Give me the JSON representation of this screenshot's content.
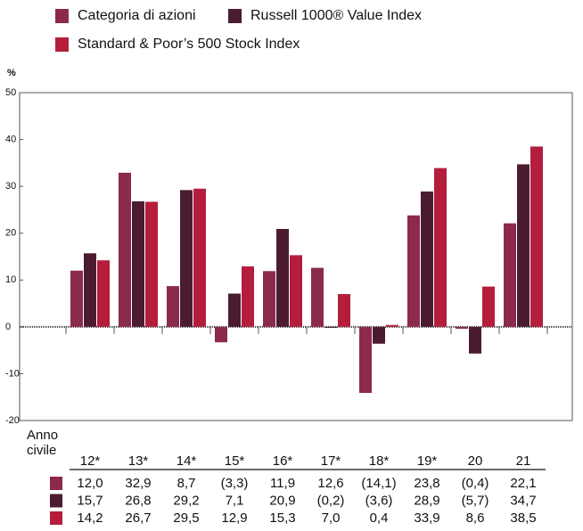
{
  "chart_data": {
    "type": "bar",
    "y_label": "%",
    "x_label": "Anno civile",
    "categories": [
      "12*",
      "13*",
      "14*",
      "15*",
      "16*",
      "17*",
      "18*",
      "19*",
      "20",
      "21"
    ],
    "series": [
      {
        "name": "Categoria di azioni",
        "color": "#8c2a4b",
        "values": [
          12.0,
          32.9,
          8.7,
          -3.3,
          11.9,
          12.6,
          -14.1,
          23.8,
          -0.4,
          22.1
        ],
        "value_labels": [
          "12,0",
          "32,9",
          "8,7",
          "(3,3)",
          "11,9",
          "12,6",
          "(14,1)",
          "23,8",
          "(0,4)",
          "22,1"
        ]
      },
      {
        "name": "Russell 1000® Value Index",
        "color": "#4b1c31",
        "values": [
          15.7,
          26.8,
          29.2,
          7.1,
          20.9,
          -0.2,
          -3.6,
          28.9,
          -5.7,
          34.7
        ],
        "value_labels": [
          "15,7",
          "26,8",
          "29,2",
          "7,1",
          "20,9",
          "(0,2)",
          "(3,6)",
          "28,9",
          "(5,7)",
          "34,7"
        ]
      },
      {
        "name": "Standard & Poor’s 500 Stock Index",
        "color": "#b41e3c",
        "values": [
          14.2,
          26.7,
          29.5,
          12.9,
          15.3,
          7.0,
          0.4,
          33.9,
          8.6,
          38.5
        ],
        "value_labels": [
          "14,2",
          "26,7",
          "29,5",
          "12,9",
          "15,3",
          "7,0",
          "0,4",
          "33,9",
          "8,6",
          "38,5"
        ]
      }
    ],
    "ylim": [
      -20,
      50
    ],
    "yticks": [
      -20,
      -10,
      0,
      10,
      20,
      30,
      40,
      50
    ],
    "grid": false
  }
}
